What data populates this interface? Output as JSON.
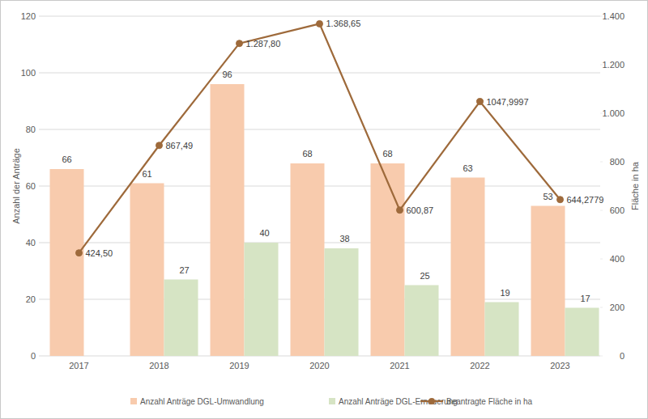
{
  "chart_data": {
    "type": "bar",
    "categories": [
      "2017",
      "2018",
      "2019",
      "2020",
      "2021",
      "2022",
      "2023"
    ],
    "series": [
      {
        "name": "Anzahl Anträge DGL-Umwandlung",
        "type": "bar",
        "color": "#f8cbad",
        "values": [
          66,
          61,
          96,
          68,
          68,
          63,
          53
        ]
      },
      {
        "name": "Anzahl Anträge DGL-Erneuerung",
        "type": "bar",
        "color": "#d6e4c4",
        "values": [
          null,
          27,
          40,
          38,
          25,
          19,
          17
        ]
      },
      {
        "name": "Beantragte Fläche in ha",
        "type": "line",
        "axis": "y2",
        "color": "#9e6a3b",
        "marker": "circle",
        "values": [
          424.5,
          867.49,
          1287.8,
          1368.65,
          600.87,
          1047.9997,
          644.2779
        ],
        "value_labels": [
          "424,50",
          "867,49",
          "1.287,80",
          "1.368,65",
          "600,87",
          "1047,9997",
          "644,2779"
        ]
      }
    ],
    "y_label": "Anzahl der Anträge",
    "y2_label": "Fläche in ha",
    "ylim": [
      0,
      120
    ],
    "yticks": [
      0,
      20,
      40,
      60,
      80,
      100,
      120
    ],
    "y2lim": [
      0,
      1400
    ],
    "y2ticks": [
      0,
      200,
      400,
      600,
      800,
      {
        "value": 1000,
        "label": "1.000"
      },
      {
        "value": 1200,
        "label": "1.200"
      },
      {
        "value": 1400,
        "label": "1.400"
      }
    ],
    "grid": true,
    "legend": "bottom",
    "data_labels": true
  }
}
